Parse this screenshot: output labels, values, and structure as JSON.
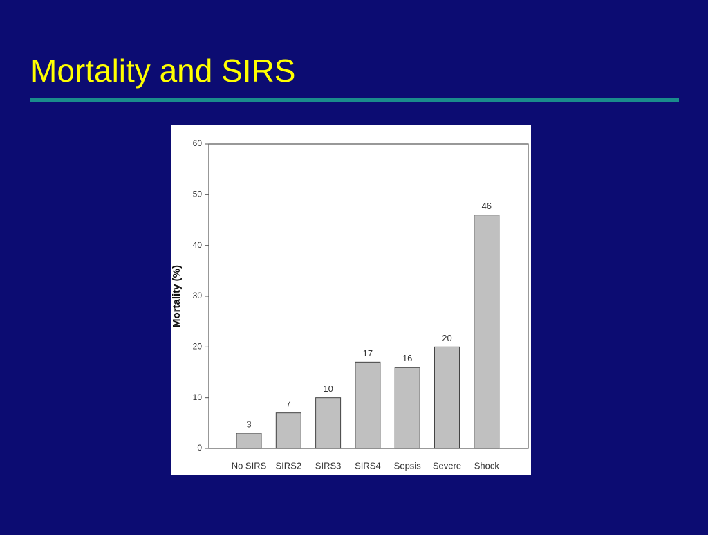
{
  "chart_data": {
    "type": "bar",
    "title": "Mortality and SIRS",
    "y_label": "Mortality (%)",
    "categories": [
      "No SIRS",
      "SIRS2",
      "SIRS3",
      "SIRS4",
      "Sepsis",
      "Severe",
      "Shock"
    ],
    "values": [
      3,
      7,
      10,
      17,
      16,
      20,
      46
    ],
    "color": "#c0c0c0",
    "ylim": [
      0,
      60
    ],
    "yticks": [
      0,
      10,
      20,
      30,
      40,
      50,
      60
    ],
    "grid": false
  }
}
